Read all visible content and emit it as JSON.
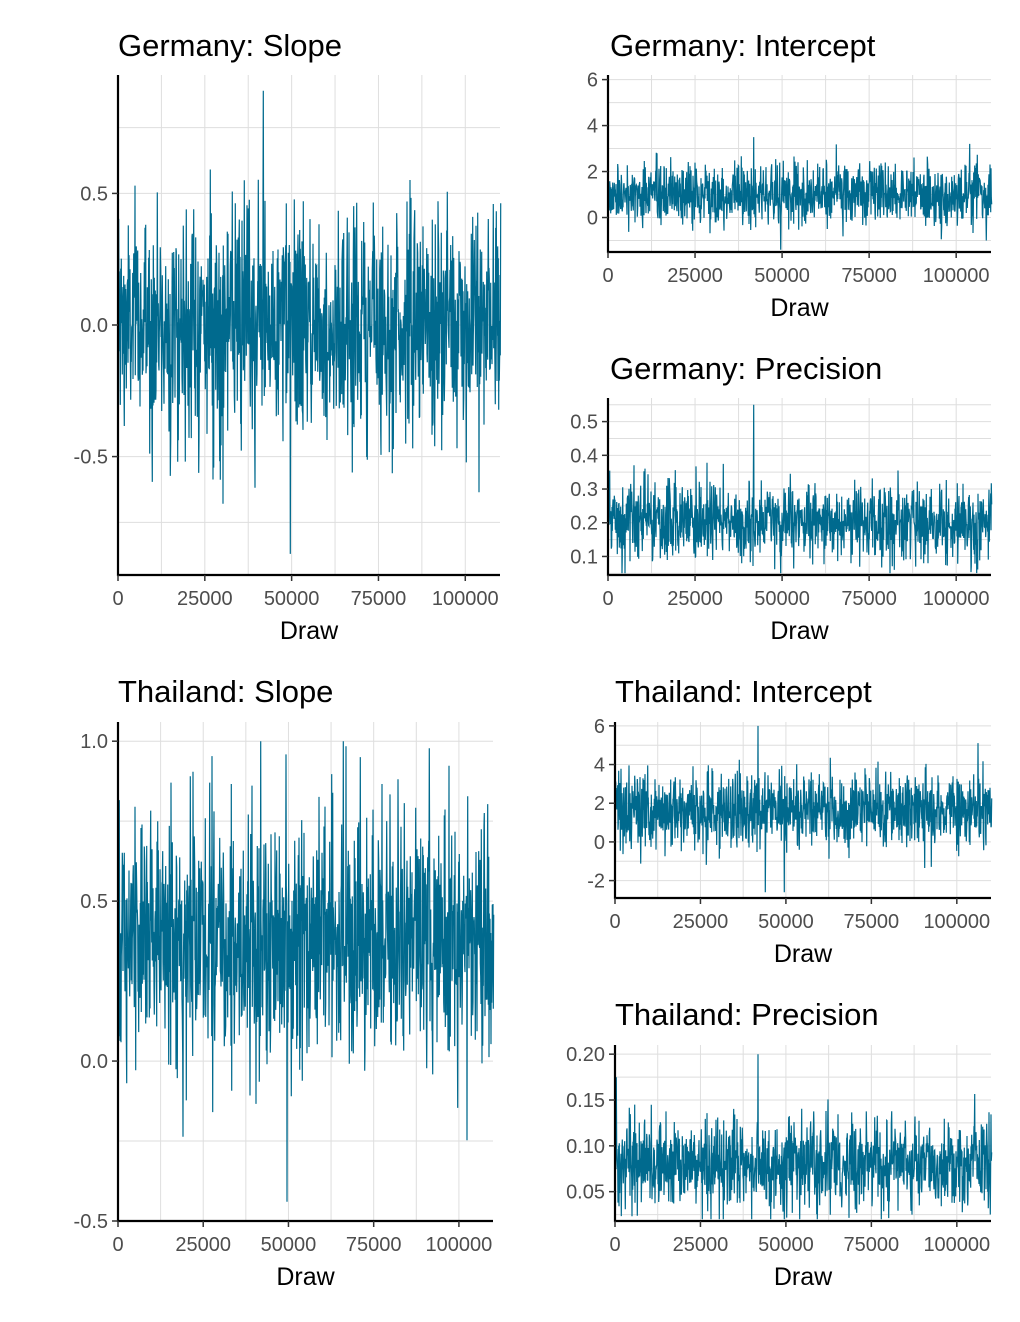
{
  "chart_data": [
    {
      "type": "line",
      "title": "Germany: Slope",
      "xlabel": "Draw",
      "ylabel": "",
      "color": "#006a8e",
      "xlim": [
        0,
        110000
      ],
      "ylim": [
        -0.95,
        0.95
      ],
      "x_ticks": [
        0,
        25000,
        50000,
        75000,
        100000
      ],
      "x_tick_labels": [
        "0",
        "25000",
        "50000",
        "75000",
        "100000"
      ],
      "y_ticks": [
        -0.5,
        0.0,
        0.5
      ],
      "y_tick_labels": [
        "-0.5",
        "0.0",
        "0.5"
      ],
      "trace": {
        "n_draws": 110000,
        "center": 0.0,
        "band_low": -0.45,
        "band_high": 0.5,
        "min": -0.87,
        "max": 0.89
      }
    },
    {
      "type": "line",
      "title": "Germany: Intercept",
      "xlabel": "Draw",
      "ylabel": "",
      "color": "#006a8e",
      "xlim": [
        0,
        110000
      ],
      "ylim": [
        -1.5,
        6.2
      ],
      "x_ticks": [
        0,
        25000,
        50000,
        75000,
        100000
      ],
      "x_tick_labels": [
        "0",
        "25000",
        "50000",
        "75000",
        "100000"
      ],
      "y_ticks": [
        0,
        2,
        4,
        6
      ],
      "y_tick_labels": [
        "0",
        "2",
        "4",
        "6"
      ],
      "trace": {
        "n_draws": 110000,
        "center": 1.0,
        "band_low": -0.6,
        "band_high": 2.4,
        "min": -1.4,
        "max": 3.5
      }
    },
    {
      "type": "line",
      "title": "Germany: Precision",
      "xlabel": "Draw",
      "ylabel": "",
      "color": "#006a8e",
      "xlim": [
        0,
        110000
      ],
      "ylim": [
        0.045,
        0.57
      ],
      "x_ticks": [
        0,
        25000,
        50000,
        75000,
        100000
      ],
      "x_tick_labels": [
        "0",
        "25000",
        "50000",
        "75000",
        "100000"
      ],
      "y_ticks": [
        0.1,
        0.2,
        0.3,
        0.4,
        0.5
      ],
      "y_tick_labels": [
        "0.1",
        "0.2",
        "0.3",
        "0.4",
        "0.5"
      ],
      "trace": {
        "n_draws": 110000,
        "center": 0.2,
        "band_low": 0.08,
        "band_high": 0.34,
        "min": 0.05,
        "max": 0.55
      }
    },
    {
      "type": "line",
      "title": "Thailand: Slope",
      "xlabel": "Draw",
      "ylabel": "",
      "color": "#006a8e",
      "xlim": [
        0,
        110000
      ],
      "ylim": [
        -0.5,
        1.06
      ],
      "x_ticks": [
        0,
        25000,
        50000,
        75000,
        100000
      ],
      "x_tick_labels": [
        "0",
        "25000",
        "50000",
        "75000",
        "100000"
      ],
      "y_ticks": [
        -0.5,
        0.0,
        0.5,
        1.0
      ],
      "y_tick_labels": [
        "-0.5",
        "0.0",
        "0.5",
        "1.0"
      ],
      "trace": {
        "n_draws": 110000,
        "center": 0.38,
        "band_low": -0.05,
        "band_high": 0.82,
        "min": -0.44,
        "max": 1.0
      }
    },
    {
      "type": "line",
      "title": "Thailand: Intercept",
      "xlabel": "Draw",
      "ylabel": "",
      "color": "#006a8e",
      "xlim": [
        0,
        110000
      ],
      "ylim": [
        -2.9,
        6.2
      ],
      "x_ticks": [
        0,
        25000,
        50000,
        75000,
        100000
      ],
      "x_tick_labels": [
        "0",
        "25000",
        "50000",
        "75000",
        "100000"
      ],
      "y_ticks": [
        -2,
        0,
        2,
        4,
        6
      ],
      "y_tick_labels": [
        "-2",
        "0",
        "2",
        "4",
        "6"
      ],
      "trace": {
        "n_draws": 110000,
        "center": 1.6,
        "band_low": -0.6,
        "band_high": 4.0,
        "min": -2.6,
        "max": 6.0
      }
    },
    {
      "type": "line",
      "title": "Thailand: Precision",
      "xlabel": "Draw",
      "ylabel": "",
      "color": "#006a8e",
      "xlim": [
        0,
        110000
      ],
      "ylim": [
        0.018,
        0.21
      ],
      "x_ticks": [
        0,
        25000,
        50000,
        75000,
        100000
      ],
      "x_tick_labels": [
        "0",
        "25000",
        "50000",
        "75000",
        "100000"
      ],
      "y_ticks": [
        0.05,
        0.1,
        0.15,
        0.2
      ],
      "y_tick_labels": [
        "0.05",
        "0.10",
        "0.15",
        "0.20"
      ],
      "trace": {
        "n_draws": 110000,
        "center": 0.08,
        "band_low": 0.03,
        "band_high": 0.14,
        "min": 0.02,
        "max": 0.2
      }
    }
  ]
}
